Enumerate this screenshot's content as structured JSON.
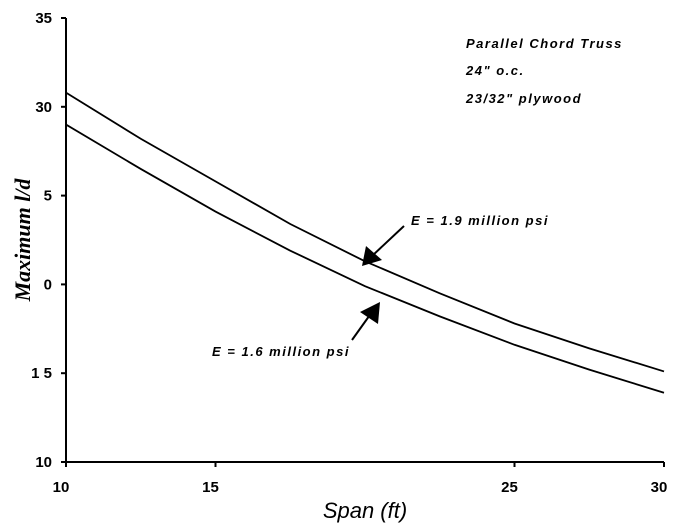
{
  "chart_data": {
    "type": "line",
    "x_label": "Span (ft)",
    "y_label": "Maximum l/d",
    "annotations": [
      "Parallel Chord Truss",
      "24\" o.c.",
      "23/32\" plywood",
      "E = 1.9 million psi",
      "E = 1.6 million psi"
    ],
    "x": [
      10,
      12.5,
      15,
      17.5,
      20,
      22.5,
      25,
      27.5,
      30
    ],
    "series": [
      {
        "name": "E = 1.9 million psi",
        "color": "#000000",
        "values": [
          30.8,
          28.2,
          25.8,
          23.4,
          21.3,
          19.5,
          17.8,
          16.4,
          15.1
        ]
      },
      {
        "name": "E = 1.6 million psi",
        "color": "#000000",
        "values": [
          29.0,
          26.5,
          24.1,
          21.9,
          19.9,
          18.2,
          16.6,
          15.2,
          13.9
        ]
      }
    ],
    "xlim": [
      10,
      30
    ],
    "ylim": [
      10,
      35
    ],
    "xticks": [
      10,
      15,
      25,
      30
    ],
    "yticks": [
      10,
      {
        "value": 15,
        "label": "1 5"
      },
      {
        "value": 20,
        "label": "0"
      },
      {
        "value": 25,
        "label": "5"
      },
      30,
      35
    ],
    "grid": false
  }
}
